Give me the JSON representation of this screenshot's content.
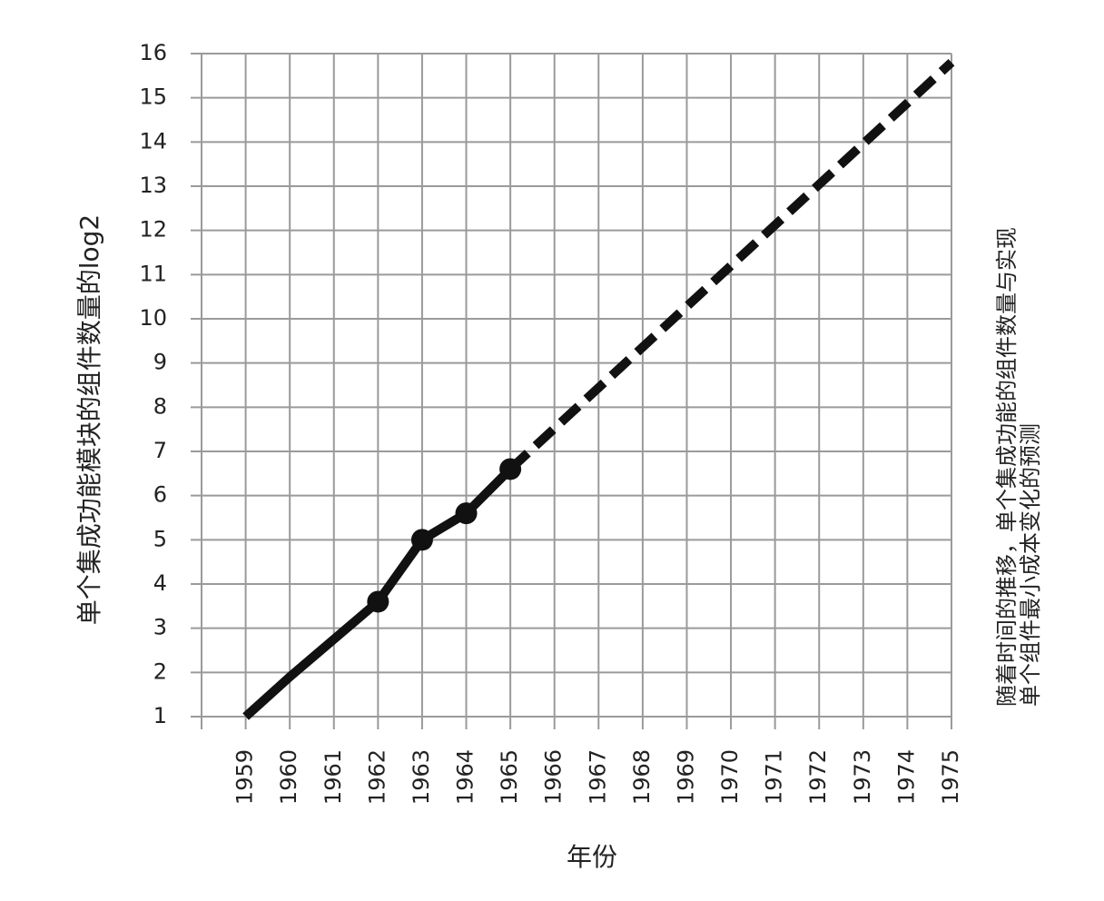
{
  "chart_data": {
    "type": "line",
    "x_label": "年份",
    "y_label": "单个集成功能模块的组件数量的log2",
    "annotation": [
      "随着时间的推移，单个集成功能的组件数量与实现",
      "单个组件最小成本变化的预测"
    ],
    "xlim": [
      1958,
      1975
    ],
    "xticks": [
      1959,
      1960,
      1961,
      1962,
      1963,
      1964,
      1965,
      1966,
      1967,
      1968,
      1969,
      1970,
      1971,
      1972,
      1973,
      1974,
      1975
    ],
    "ylim": [
      1,
      16
    ],
    "yticks": [
      1,
      2,
      3,
      4,
      5,
      6,
      7,
      8,
      9,
      10,
      11,
      12,
      13,
      14,
      15,
      16
    ],
    "grid": true,
    "series": [
      {
        "x": [
          1959,
          1960,
          1961,
          1962,
          1963,
          1964,
          1965
        ],
        "values": [
          1,
          1.9,
          2.75,
          3.6,
          5,
          5.6,
          6.6
        ],
        "color": "#111111",
        "style": "solid"
      },
      {
        "x": [
          1962,
          1963,
          1964,
          1965
        ],
        "values": [
          3.6,
          5,
          5.6,
          6.6
        ],
        "color": "#111111",
        "style": "markers"
      },
      {
        "x": [
          1965,
          1975
        ],
        "values": [
          6.6,
          15.8
        ],
        "color": "#111111",
        "style": "dashed"
      }
    ]
  }
}
